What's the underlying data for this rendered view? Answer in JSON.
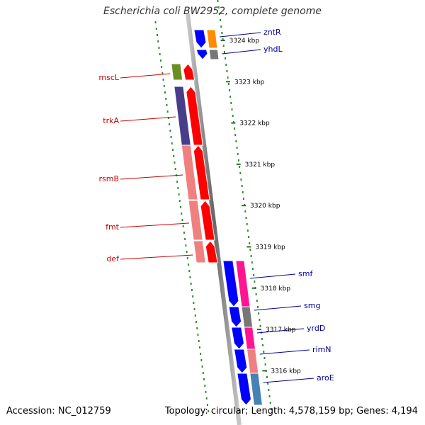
{
  "title": "Escherichia coli BW2952, complete genome",
  "footer": {
    "accession": "Accession: NC_012759",
    "summary": "Topology: circular; Length: 4,578,159 bp; Genes: 4,194"
  },
  "colors": {
    "left_label": "#cc0000",
    "right_label": "#000099",
    "ruler_tick": "#2f8f2f",
    "backbone": "#888888"
  },
  "ticks": [
    {
      "label": "3324 kbp",
      "kbp": 3324
    },
    {
      "label": "3323 kbp",
      "kbp": 3323
    },
    {
      "label": "3322 kbp",
      "kbp": 3322
    },
    {
      "label": "3321 kbp",
      "kbp": 3321
    },
    {
      "label": "3320 kbp",
      "kbp": 3320
    },
    {
      "label": "3319 kbp",
      "kbp": 3319
    },
    {
      "label": "3318 kbp",
      "kbp": 3318
    },
    {
      "label": "3317 kbp",
      "kbp": 3317
    },
    {
      "label": "3316 kbp",
      "kbp": 3316
    }
  ],
  "left_genes": [
    {
      "name": "mscL",
      "cog_color": "#6b8e23",
      "strand_color": "#ff0000"
    },
    {
      "name": "trkA",
      "cog_color": "#483d8b",
      "strand_color": "#ff0000"
    },
    {
      "name": "rsmB",
      "cog_color": "#f08080",
      "strand_color": "#ff0000"
    },
    {
      "name": "fmt",
      "cog_color": "#f08080",
      "strand_color": "#ff0000"
    },
    {
      "name": "def",
      "cog_color": "#f08080",
      "strand_color": "#ff0000"
    }
  ],
  "right_genes": [
    {
      "name": "zntR",
      "cog_color": "#ff8c00",
      "strand_color": "#0000ff"
    },
    {
      "name": "yhdL",
      "cog_color": "#777777",
      "strand_color": "#0000ff"
    },
    {
      "name": "smf",
      "cog_color": "#ff1493",
      "strand_color": "#0000ff"
    },
    {
      "name": "smg",
      "cog_color": "#777777",
      "strand_color": "#0000ff"
    },
    {
      "name": "yrdD",
      "cog_color": "#ff1493",
      "strand_color": "#0000ff"
    },
    {
      "name": "rimN",
      "cog_color": "#f08080",
      "strand_color": "#0000ff"
    },
    {
      "name": "aroE",
      "cog_color": "#4682b4",
      "strand_color": "#0000ff"
    }
  ]
}
